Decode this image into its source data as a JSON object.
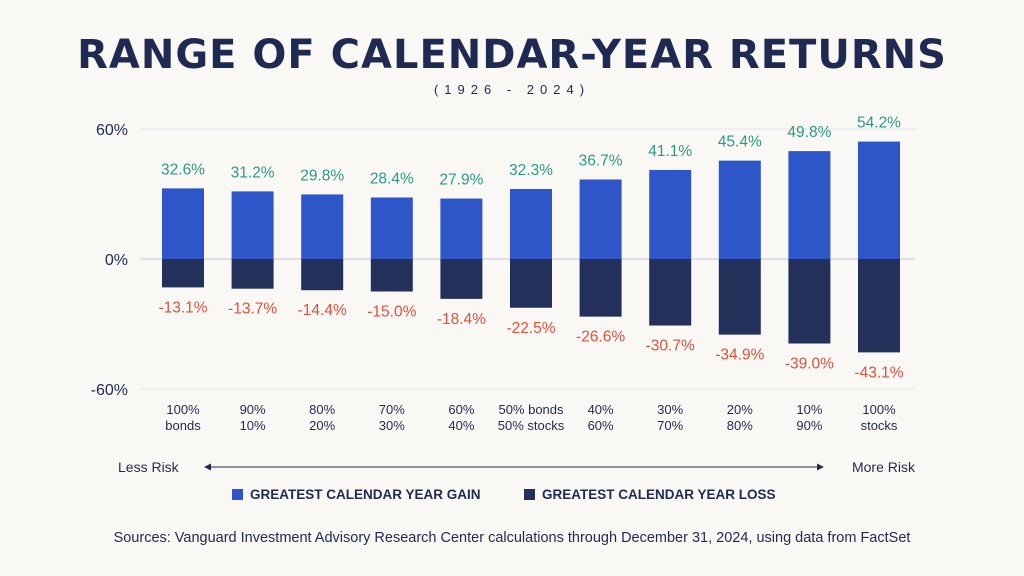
{
  "title": "RANGE OF CALENDAR-YEAR RETURNS",
  "subtitle": "(1926 - 2024)",
  "source_note": "Sources: Vanguard Investment Advisory Research Center calculations through December 31, 2024, using data from FactSet",
  "risk_scale": {
    "left_label": "Less Risk",
    "right_label": "More Risk"
  },
  "colors": {
    "gain": "#2f56c9",
    "loss": "#23305a",
    "gain_label": "#2a9a86",
    "loss_label": "#e0503c",
    "text": "#1f2a52",
    "grid": "#e2e2ea"
  },
  "chart_data": {
    "type": "bar",
    "title": "RANGE OF CALENDAR-YEAR RETURNS",
    "subtitle": "(1926 - 2024)",
    "xlabel": "",
    "ylabel": "",
    "ylim": [
      -60,
      60
    ],
    "yticks": [
      {
        "value": 60,
        "label": "60%"
      },
      {
        "value": 0,
        "label": "0%"
      },
      {
        "value": -60,
        "label": "-60%"
      }
    ],
    "grid": true,
    "legend_position": "bottom",
    "categories": [
      [
        "100%",
        "bonds"
      ],
      [
        "90%",
        "10%"
      ],
      [
        "80%",
        "20%"
      ],
      [
        "70%",
        "30%"
      ],
      [
        "60%",
        "40%"
      ],
      [
        "50% bonds",
        "50% stocks"
      ],
      [
        "40%",
        "60%"
      ],
      [
        "30%",
        "70%"
      ],
      [
        "20%",
        "80%"
      ],
      [
        "10%",
        "90%"
      ],
      [
        "100%",
        "stocks"
      ]
    ],
    "series": [
      {
        "name": "GREATEST CALENDAR YEAR GAIN",
        "values": [
          32.6,
          31.2,
          29.8,
          28.4,
          27.9,
          32.3,
          36.7,
          41.1,
          45.4,
          49.8,
          54.2
        ],
        "labels": [
          "32.6%",
          "31.2%",
          "29.8%",
          "28.4%",
          "27.9%",
          "32.3%",
          "36.7%",
          "41.1%",
          "45.4%",
          "49.8%",
          "54.2%"
        ]
      },
      {
        "name": "GREATEST CALENDAR YEAR LOSS",
        "values": [
          -13.1,
          -13.7,
          -14.4,
          -15.0,
          -18.4,
          -22.5,
          -26.6,
          -30.7,
          -34.9,
          -39.0,
          -43.1
        ],
        "labels": [
          "-13.1%",
          "-13.7%",
          "-14.4%",
          "-15.0%",
          "-18.4%",
          "-22.5%",
          "-26.6%",
          "-30.7%",
          "-34.9%",
          "-39.0%",
          "-43.1%"
        ]
      }
    ]
  }
}
